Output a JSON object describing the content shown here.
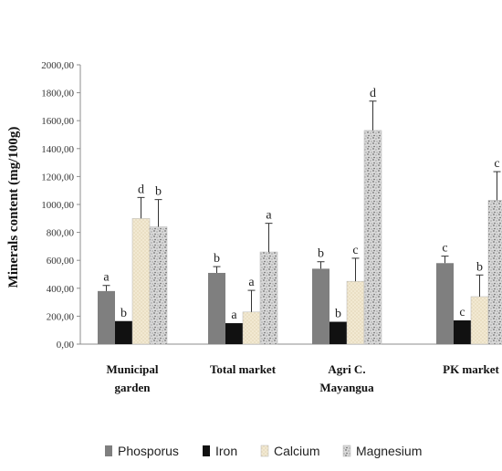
{
  "chart_data": {
    "type": "bar",
    "ylabel": "Minerals content (mg/100g)",
    "ylim": [
      0,
      2000
    ],
    "yticks": [
      "0,00",
      "200,00",
      "400,00",
      "600,00",
      "800,00",
      "1000,00",
      "1200,00",
      "1400,00",
      "1600,00",
      "1800,00",
      "2000,00"
    ],
    "categories": [
      [
        "Municipal",
        "garden"
      ],
      [
        "Total market"
      ],
      [
        "Agri C.",
        "Mayangua"
      ],
      [
        "PK market"
      ]
    ],
    "series": [
      {
        "name": "Phosporus",
        "color": "#7f7f7f",
        "pattern": "solid",
        "values": [
          380,
          510,
          540,
          580
        ],
        "errors": [
          40,
          45,
          50,
          50
        ],
        "letters": [
          "a",
          "b",
          "b",
          "c"
        ]
      },
      {
        "name": "Iron",
        "color": "#111111",
        "pattern": "solid",
        "values": [
          165,
          150,
          160,
          170
        ],
        "errors": [
          0,
          0,
          0,
          0
        ],
        "letters": [
          "b",
          "a",
          "b",
          "c"
        ]
      },
      {
        "name": "Calcium",
        "color": "#eee3c8",
        "pattern": "stipple",
        "values": [
          900,
          230,
          450,
          340
        ],
        "errors": [
          150,
          155,
          165,
          155
        ],
        "letters": [
          "d",
          "a",
          "c",
          "b"
        ]
      },
      {
        "name": "Magnesium",
        "color": "#c8c8c8",
        "pattern": "speckle",
        "values": [
          840,
          660,
          1530,
          1030
        ],
        "errors": [
          195,
          205,
          210,
          205
        ],
        "letters": [
          "b",
          "a",
          "d",
          "c"
        ]
      }
    ],
    "legend_position": "bottom",
    "grid": false
  }
}
